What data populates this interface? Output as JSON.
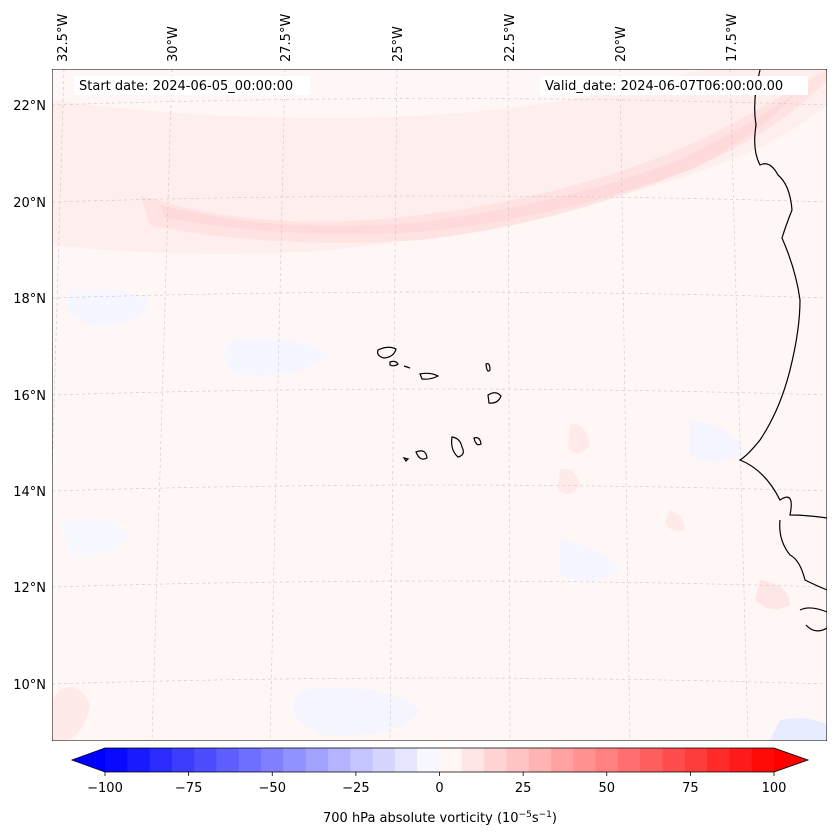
{
  "map": {
    "start_label": "Start date: 2024-06-05_00:00:00",
    "valid_label": "Valid_date: 2024-06-07T06:00:00.00",
    "lon_labels": [
      "32.5°W",
      "30°W",
      "27.5°W",
      "25°W",
      "22.5°W",
      "20°W",
      "17.5°W"
    ],
    "lat_labels": [
      "22°N",
      "20°N",
      "18°N",
      "16°N",
      "14°N",
      "12°N",
      "10°N"
    ]
  },
  "colorbar": {
    "label_prefix": "700 hPa absolute vorticity (10",
    "label_exp1": "−5",
    "label_mid": "s",
    "label_exp2": "−1",
    "label_suffix": ")",
    "ticks": [
      "−100",
      "−75",
      "−50",
      "−25",
      "0",
      "25",
      "50",
      "75",
      "100"
    ],
    "min": -100,
    "max": 100,
    "levels": 30
  },
  "colors": {
    "negative_end": "#0000ff",
    "positive_end": "#ff0000",
    "neutral": "#ffffff",
    "background_tint": "#fff7f7",
    "band_tint": "#ffe0e0"
  }
}
